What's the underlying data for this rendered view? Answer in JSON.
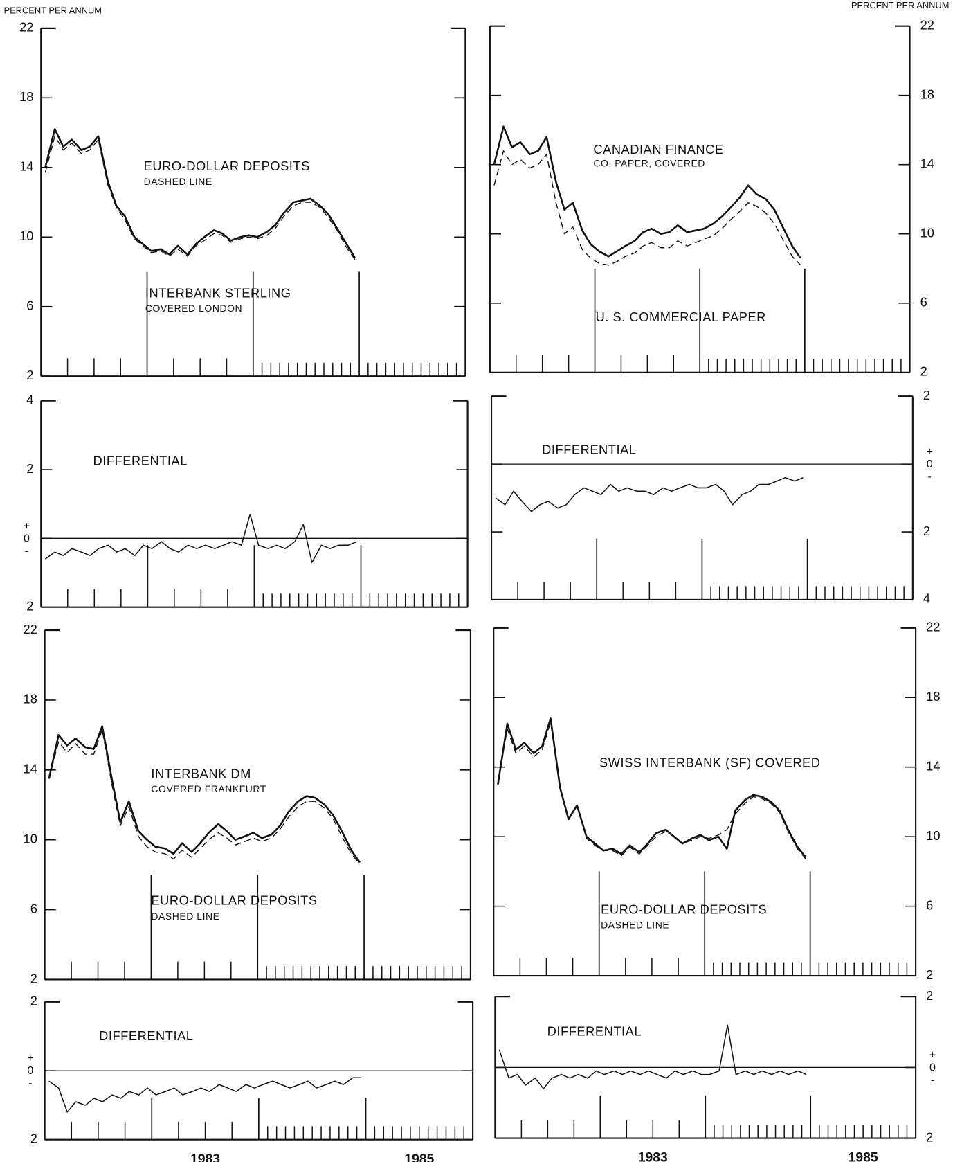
{
  "chart_data": [
    {
      "type": "line",
      "ylabel": "PERCENT PER ANNUM",
      "xlim": [
        1982,
        1986
      ],
      "ylim": [
        2,
        22
      ],
      "yticks": [
        2,
        6,
        10,
        14,
        18,
        22
      ],
      "x": [
        1982.04,
        1982.13,
        1982.21,
        1982.29,
        1982.38,
        1982.46,
        1982.54,
        1982.63,
        1982.71,
        1982.79,
        1982.88,
        1982.96,
        1983.04,
        1983.13,
        1983.21,
        1983.29,
        1983.38,
        1983.46,
        1983.54,
        1983.63,
        1983.71,
        1983.79,
        1983.88,
        1983.96,
        1984.04,
        1984.13,
        1984.21,
        1984.29,
        1984.38,
        1984.46,
        1984.54,
        1984.63,
        1984.71,
        1984.79,
        1984.88,
        1984.96
      ],
      "series": [
        {
          "name": "INTERBANK STERLING",
          "note": "COVERED LONDON",
          "color": "#111",
          "style": "solid",
          "values": [
            14.0,
            16.2,
            15.2,
            15.6,
            15.0,
            15.2,
            15.8,
            13.2,
            11.8,
            11.2,
            10.0,
            9.6,
            9.2,
            9.3,
            9.0,
            9.5,
            9.0,
            9.6,
            10.0,
            10.4,
            10.2,
            9.8,
            10.0,
            10.1,
            10.0,
            10.3,
            10.7,
            11.4,
            12.0,
            12.1,
            12.2,
            11.8,
            11.3,
            10.5,
            9.6,
            8.8
          ]
        },
        {
          "name": "EURO-DOLLAR DEPOSITS",
          "note": "DASHED LINE",
          "color": "#111",
          "style": "dashed",
          "values": [
            13.7,
            15.8,
            15.0,
            15.4,
            14.8,
            15.0,
            15.6,
            13.0,
            11.7,
            11.0,
            9.9,
            9.5,
            9.1,
            9.2,
            8.9,
            9.3,
            8.9,
            9.5,
            9.8,
            10.2,
            10.1,
            9.7,
            9.9,
            10.0,
            9.9,
            10.1,
            10.5,
            11.2,
            11.8,
            12.0,
            12.0,
            11.7,
            11.1,
            10.4,
            9.4,
            8.7
          ]
        }
      ]
    },
    {
      "type": "line",
      "xlim": [
        1982,
        1986
      ],
      "ylim": [
        -2,
        4
      ],
      "yticks": [
        {
          "value": -2,
          "label": "2"
        },
        {
          "value": 0,
          "label": "+0-"
        },
        2,
        4
      ],
      "x": [
        1982.04,
        1982.13,
        1982.21,
        1982.29,
        1982.38,
        1982.46,
        1982.54,
        1982.63,
        1982.71,
        1982.79,
        1982.88,
        1982.96,
        1983.04,
        1983.13,
        1983.21,
        1983.29,
        1983.38,
        1983.46,
        1983.54,
        1983.63,
        1983.71,
        1983.79,
        1983.88,
        1983.96,
        1984.04,
        1984.13,
        1984.21,
        1984.29,
        1984.38,
        1984.46,
        1984.54,
        1984.63,
        1984.71,
        1984.79,
        1984.88,
        1984.96
      ],
      "series": [
        {
          "name": "DIFFERENTIAL",
          "color": "#111",
          "style": "solid",
          "values": [
            -0.6,
            -0.4,
            -0.5,
            -0.3,
            -0.4,
            -0.5,
            -0.3,
            -0.2,
            -0.4,
            -0.3,
            -0.5,
            -0.2,
            -0.3,
            -0.1,
            -0.3,
            -0.4,
            -0.2,
            -0.3,
            -0.2,
            -0.3,
            -0.2,
            -0.1,
            -0.2,
            0.7,
            -0.2,
            -0.3,
            -0.2,
            -0.3,
            -0.1,
            0.4,
            -0.7,
            -0.2,
            -0.3,
            -0.2,
            -0.2,
            -0.1
          ]
        }
      ]
    },
    {
      "type": "line",
      "xlim": [
        1982,
        1986
      ],
      "ylim": [
        2,
        22
      ],
      "yticks": [
        2,
        6,
        10,
        14,
        18,
        22
      ],
      "x": [
        1982.04,
        1982.13,
        1982.21,
        1982.29,
        1982.38,
        1982.46,
        1982.54,
        1982.63,
        1982.71,
        1982.79,
        1982.88,
        1982.96,
        1983.04,
        1983.13,
        1983.21,
        1983.29,
        1983.38,
        1983.46,
        1983.54,
        1983.63,
        1983.71,
        1983.79,
        1983.88,
        1983.96,
        1984.04,
        1984.13,
        1984.21,
        1984.29,
        1984.38,
        1984.46,
        1984.54,
        1984.63,
        1984.71,
        1984.79,
        1984.88,
        1984.96
      ],
      "series": [
        {
          "name": "INTERBANK DM",
          "note": "COVERED FRANKFURT",
          "color": "#111",
          "style": "solid",
          "values": [
            13.5,
            16.0,
            15.4,
            15.8,
            15.3,
            15.2,
            16.5,
            13.5,
            11.0,
            12.2,
            10.5,
            10.0,
            9.6,
            9.5,
            9.2,
            9.8,
            9.3,
            9.8,
            10.4,
            10.9,
            10.5,
            10.0,
            10.2,
            10.4,
            10.1,
            10.3,
            10.8,
            11.6,
            12.2,
            12.5,
            12.4,
            12.0,
            11.4,
            10.5,
            9.4,
            8.7
          ]
        },
        {
          "name": "EURO-DOLLAR DEPOSITS",
          "note": "DASHED LINE",
          "color": "#111",
          "style": "dashed",
          "values": [
            13.5,
            15.6,
            15.0,
            15.5,
            14.9,
            14.9,
            16.3,
            13.2,
            10.8,
            11.9,
            10.2,
            9.6,
            9.3,
            9.2,
            8.9,
            9.4,
            9.0,
            9.5,
            10.0,
            10.4,
            10.1,
            9.7,
            9.9,
            10.1,
            9.9,
            10.1,
            10.6,
            11.3,
            11.9,
            12.2,
            12.2,
            11.8,
            11.2,
            10.2,
            9.2,
            8.6
          ]
        }
      ]
    },
    {
      "type": "line",
      "xlim": [
        1982,
        1986
      ],
      "ylim": [
        -2,
        2
      ],
      "yticks": [
        {
          "value": -2,
          "label": "2"
        },
        {
          "value": 0,
          "label": "+0-"
        },
        2
      ],
      "xticks": [
        1983,
        1985
      ],
      "x": [
        1982.04,
        1982.13,
        1982.21,
        1982.29,
        1982.38,
        1982.46,
        1982.54,
        1982.63,
        1982.71,
        1982.79,
        1982.88,
        1982.96,
        1983.04,
        1983.13,
        1983.21,
        1983.29,
        1983.38,
        1983.46,
        1983.54,
        1983.63,
        1983.71,
        1983.79,
        1983.88,
        1983.96,
        1984.04,
        1984.13,
        1984.21,
        1984.29,
        1984.38,
        1984.46,
        1984.54,
        1984.63,
        1984.71,
        1984.79,
        1984.88,
        1984.96
      ],
      "series": [
        {
          "name": "DIFFERENTIAL",
          "color": "#111",
          "style": "solid",
          "values": [
            -0.3,
            -0.5,
            -1.2,
            -0.9,
            -1.0,
            -0.8,
            -0.9,
            -0.7,
            -0.8,
            -0.6,
            -0.7,
            -0.5,
            -0.7,
            -0.6,
            -0.5,
            -0.7,
            -0.6,
            -0.5,
            -0.6,
            -0.4,
            -0.5,
            -0.6,
            -0.4,
            -0.5,
            -0.4,
            -0.3,
            -0.4,
            -0.5,
            -0.4,
            -0.3,
            -0.5,
            -0.4,
            -0.3,
            -0.4,
            -0.2,
            -0.2
          ]
        }
      ]
    },
    {
      "type": "line",
      "ylabel": "PERCENT PER ANNUM",
      "xlim": [
        1982,
        1986
      ],
      "ylim": [
        2,
        22
      ],
      "yticks": [
        2,
        6,
        10,
        14,
        18,
        22
      ],
      "x": [
        1982.04,
        1982.13,
        1982.21,
        1982.29,
        1982.38,
        1982.46,
        1982.54,
        1982.63,
        1982.71,
        1982.79,
        1982.88,
        1982.96,
        1983.04,
        1983.13,
        1983.21,
        1983.29,
        1983.38,
        1983.46,
        1983.54,
        1983.63,
        1983.71,
        1983.79,
        1983.88,
        1983.96,
        1984.04,
        1984.13,
        1984.21,
        1984.29,
        1984.38,
        1984.46,
        1984.54,
        1984.63,
        1984.71,
        1984.79,
        1984.88,
        1984.96
      ],
      "series": [
        {
          "name": "CANADIAN FINANCE",
          "note": "CO. PAPER, COVERED",
          "color": "#111",
          "style": "solid",
          "values": [
            14.0,
            16.2,
            15.0,
            15.3,
            14.6,
            14.8,
            15.6,
            13.0,
            11.4,
            11.8,
            10.2,
            9.4,
            9.0,
            8.7,
            9.0,
            9.3,
            9.6,
            10.1,
            10.3,
            10.0,
            10.1,
            10.5,
            10.1,
            10.2,
            10.3,
            10.6,
            11.0,
            11.5,
            12.1,
            12.8,
            12.3,
            12.0,
            11.4,
            10.4,
            9.3,
            8.6
          ]
        },
        {
          "name": "U. S. COMMERCIAL PAPER",
          "color": "#111",
          "style": "dashed",
          "values": [
            12.8,
            14.8,
            14.0,
            14.3,
            13.8,
            14.0,
            14.6,
            11.8,
            10.0,
            10.4,
            9.1,
            8.6,
            8.3,
            8.2,
            8.4,
            8.7,
            8.9,
            9.3,
            9.5,
            9.2,
            9.2,
            9.6,
            9.3,
            9.5,
            9.7,
            9.9,
            10.3,
            10.8,
            11.3,
            11.8,
            11.6,
            11.2,
            10.6,
            9.7,
            8.7,
            8.2
          ]
        }
      ]
    },
    {
      "type": "line",
      "xlim": [
        1982,
        1986
      ],
      "ylim": [
        -4,
        2
      ],
      "yticks": [
        {
          "value": -4,
          "label": "4"
        },
        {
          "value": -2,
          "label": "2"
        },
        {
          "value": 0,
          "label": "+0-"
        },
        2
      ],
      "x": [
        1982.04,
        1982.13,
        1982.21,
        1982.29,
        1982.38,
        1982.46,
        1982.54,
        1982.63,
        1982.71,
        1982.79,
        1982.88,
        1982.96,
        1983.04,
        1983.13,
        1983.21,
        1983.29,
        1983.38,
        1983.46,
        1983.54,
        1983.63,
        1983.71,
        1983.79,
        1983.88,
        1983.96,
        1984.04,
        1984.13,
        1984.21,
        1984.29,
        1984.38,
        1984.46,
        1984.54,
        1984.63,
        1984.71,
        1984.79,
        1984.88,
        1984.96
      ],
      "series": [
        {
          "name": "DIFFERENTIAL",
          "color": "#111",
          "style": "solid",
          "values": [
            -1.0,
            -1.2,
            -0.8,
            -1.1,
            -1.4,
            -1.2,
            -1.1,
            -1.3,
            -1.2,
            -0.9,
            -0.7,
            -0.8,
            -0.9,
            -0.6,
            -0.8,
            -0.7,
            -0.8,
            -0.8,
            -0.9,
            -0.7,
            -0.8,
            -0.7,
            -0.6,
            -0.7,
            -0.7,
            -0.6,
            -0.8,
            -1.2,
            -0.9,
            -0.8,
            -0.6,
            -0.6,
            -0.5,
            -0.4,
            -0.5,
            -0.4
          ]
        }
      ]
    },
    {
      "type": "line",
      "xlim": [
        1982,
        1986
      ],
      "ylim": [
        2,
        22
      ],
      "yticks": [
        2,
        6,
        10,
        14,
        18,
        22
      ],
      "x": [
        1982.04,
        1982.13,
        1982.21,
        1982.29,
        1982.38,
        1982.46,
        1982.54,
        1982.63,
        1982.71,
        1982.79,
        1982.88,
        1982.96,
        1983.04,
        1983.13,
        1983.21,
        1983.29,
        1983.38,
        1983.46,
        1983.54,
        1983.63,
        1983.71,
        1983.79,
        1983.88,
        1983.96,
        1984.04,
        1984.13,
        1984.21,
        1984.29,
        1984.38,
        1984.46,
        1984.54,
        1984.63,
        1984.71,
        1984.79,
        1984.88,
        1984.96
      ],
      "series": [
        {
          "name": "SWISS INTERBANK (SF) COVERED",
          "color": "#111",
          "style": "solid",
          "values": [
            13.0,
            16.5,
            15.0,
            15.4,
            14.8,
            15.2,
            16.8,
            12.8,
            11.0,
            11.8,
            10.0,
            9.6,
            9.2,
            9.3,
            9.0,
            9.5,
            9.1,
            9.6,
            10.2,
            10.4,
            10.0,
            9.6,
            9.9,
            10.1,
            9.8,
            10.0,
            9.3,
            11.5,
            12.1,
            12.4,
            12.3,
            12.0,
            11.5,
            10.4,
            9.4,
            8.8
          ]
        },
        {
          "name": "EURO-DOLLAR DEPOSITS",
          "note": "DASHED LINE",
          "color": "#111",
          "style": "dashed",
          "values": [
            13.2,
            16.2,
            14.8,
            15.2,
            14.6,
            15.0,
            16.6,
            12.8,
            11.0,
            11.8,
            9.9,
            9.5,
            9.2,
            9.2,
            8.9,
            9.4,
            9.0,
            9.5,
            10.0,
            10.3,
            10.0,
            9.6,
            9.8,
            10.0,
            9.9,
            10.1,
            10.4,
            11.3,
            11.9,
            12.3,
            12.2,
            11.9,
            11.4,
            10.3,
            9.3,
            8.7
          ]
        }
      ]
    },
    {
      "type": "line",
      "xlim": [
        1982,
        1986
      ],
      "ylim": [
        -2,
        2
      ],
      "yticks": [
        {
          "value": -2,
          "label": "2"
        },
        {
          "value": 0,
          "label": "+0-"
        },
        2
      ],
      "xticks": [
        1983,
        1985
      ],
      "x": [
        1982.04,
        1982.13,
        1982.21,
        1982.29,
        1982.38,
        1982.46,
        1982.54,
        1982.63,
        1982.71,
        1982.79,
        1982.88,
        1982.96,
        1983.04,
        1983.13,
        1983.21,
        1983.29,
        1983.38,
        1983.46,
        1983.54,
        1983.63,
        1983.71,
        1983.79,
        1983.88,
        1983.96,
        1984.04,
        1984.13,
        1984.21,
        1984.29,
        1984.38,
        1984.46,
        1984.54,
        1984.63,
        1984.71,
        1984.79,
        1984.88,
        1984.96
      ],
      "series": [
        {
          "name": "DIFFERENTIAL",
          "color": "#111",
          "style": "solid",
          "values": [
            0.5,
            -0.3,
            -0.2,
            -0.5,
            -0.3,
            -0.6,
            -0.3,
            -0.2,
            -0.3,
            -0.2,
            -0.3,
            -0.1,
            -0.2,
            -0.1,
            -0.2,
            -0.1,
            -0.2,
            -0.1,
            -0.2,
            -0.3,
            -0.1,
            -0.2,
            -0.1,
            -0.2,
            -0.2,
            -0.1,
            1.2,
            -0.2,
            -0.1,
            -0.2,
            -0.1,
            -0.2,
            -0.1,
            -0.2,
            -0.1,
            -0.2
          ]
        }
      ]
    }
  ]
}
